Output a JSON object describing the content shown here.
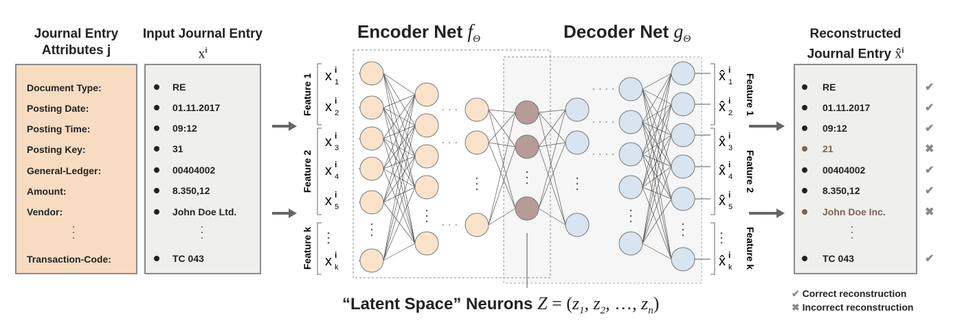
{
  "headers": {
    "attributes": "Journal Entry Attributes j",
    "input": "Input Journal Entry",
    "input_symbol": "x",
    "input_sup": "i",
    "encoder": "Encoder Net",
    "encoder_symbol": "f",
    "encoder_sub": "Θ",
    "decoder": "Decoder Net",
    "decoder_symbol": "g",
    "decoder_sub": "Θ",
    "output": "Reconstructed Journal Entry",
    "output_symbol": "x̂",
    "output_sup": "i"
  },
  "attributes": [
    "Document Type:",
    "Posting Date:",
    "Posting Time:",
    "Posting Key:",
    "General-Ledger:",
    "Amount:",
    "Vendor:",
    "Transaction-Code:"
  ],
  "input_values": [
    "RE",
    "01.11.2017",
    "09:12",
    "31",
    "00404002",
    "8.350,12",
    "John Doe Ltd.",
    "TC 043"
  ],
  "output_rows": [
    {
      "value": "RE",
      "correct": true
    },
    {
      "value": "01.11.2017",
      "correct": true
    },
    {
      "value": "09:12",
      "correct": true
    },
    {
      "value": "21",
      "correct": false
    },
    {
      "value": "00404002",
      "correct": true
    },
    {
      "value": "8.350,12",
      "correct": true
    },
    {
      "value": "John Doe Inc.",
      "correct": false
    },
    {
      "value": "TC 043",
      "correct": true
    }
  ],
  "input_features": [
    {
      "label": "Feature 1",
      "subs": [
        "1",
        "2"
      ]
    },
    {
      "label": "Feature 2",
      "subs": [
        "3",
        "4",
        "5"
      ]
    },
    {
      "label": "Feature k",
      "subs": [
        "k"
      ]
    }
  ],
  "input_symbol_letter": "x",
  "output_symbol_letter": "x̂",
  "feature_sup": "i",
  "latent": {
    "label": "“Latent Space” Neurons",
    "formula_lhs": "Z",
    "formula_eq": " = (",
    "z1": "z",
    "z1_sub": "1",
    "z2": "z",
    "z2_sub": "2",
    "ellipsis": "…",
    "zn": "z",
    "zn_sub": "n",
    "close": ")"
  },
  "legend": {
    "correct_icon": "check-icon",
    "correct": "Correct reconstruction",
    "incorrect_icon": "cross-icon",
    "incorrect": "Incorrect reconstruction"
  },
  "colors": {
    "encoder_neuron": "#fbe3cb",
    "latent_neuron": "#b89b96",
    "decoder_neuron": "#d8e4ef",
    "attribute_panel": "#f8dcc2",
    "entry_panel": "#efefed",
    "incorrect_text": "#7a6453"
  }
}
